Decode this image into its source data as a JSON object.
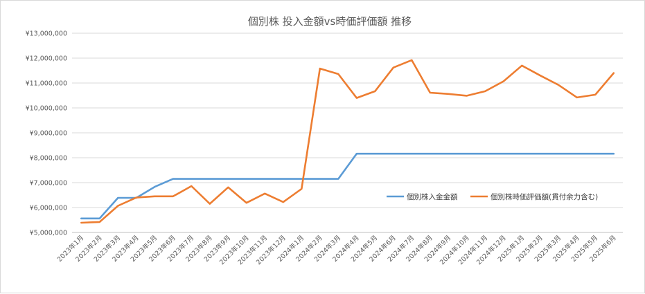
{
  "chart_data": {
    "type": "line",
    "title": "個別株  投入金額vs時価評価額  推移",
    "xlabel": "",
    "ylabel": "",
    "ylim": [
      5000000,
      13000000
    ],
    "y_ticks": [
      "¥5,000,000",
      "¥6,000,000",
      "¥7,000,000",
      "¥8,000,000",
      "¥9,000,000",
      "¥10,000,000",
      "¥11,000,000",
      "¥12,000,000",
      "¥13,000,000"
    ],
    "y_tick_values": [
      5000000,
      6000000,
      7000000,
      8000000,
      9000000,
      10000000,
      11000000,
      12000000,
      13000000
    ],
    "grid": true,
    "legend_position": "right",
    "categories": [
      "2023年1月",
      "2023年2月",
      "2023年3月",
      "2023年4月",
      "2023年5月",
      "2023年6月",
      "2023年7月",
      "2023年8月",
      "2023年9月",
      "2023年10月",
      "2023年11月",
      "2023年12月",
      "2024年1月",
      "2024年2月",
      "2024年3月",
      "2024年4月",
      "2024年5月",
      "2024年6月",
      "2024年7月",
      "2024年8月",
      "2024年9月",
      "2024年10月",
      "2024年11月",
      "2024年12月",
      "2025年1月",
      "2025年2月",
      "2025年3月",
      "2025年4月",
      "2025年5月",
      "2025年6月"
    ],
    "series": [
      {
        "name": "個別株入金金額",
        "color": "#5b9bd5",
        "values": [
          5560000,
          5560000,
          6390000,
          6390000,
          6830000,
          7150000,
          7150000,
          7150000,
          7150000,
          7150000,
          7150000,
          7150000,
          7150000,
          7150000,
          7150000,
          8160000,
          8160000,
          8160000,
          8160000,
          8160000,
          8160000,
          8160000,
          8160000,
          8160000,
          8160000,
          8160000,
          8160000,
          8160000,
          8160000,
          8160000
        ]
      },
      {
        "name": "個別株時価評価額(貫付余力含む)",
        "color": "#ed7d31",
        "values": [
          5390000,
          5420000,
          6070000,
          6400000,
          6450000,
          6450000,
          6860000,
          6150000,
          6810000,
          6190000,
          6560000,
          6220000,
          6750000,
          11580000,
          11360000,
          10400000,
          10670000,
          11620000,
          11920000,
          10610000,
          10560000,
          10490000,
          10670000,
          11070000,
          11700000,
          11300000,
          10920000,
          10420000,
          10530000,
          11400000
        ]
      }
    ]
  }
}
